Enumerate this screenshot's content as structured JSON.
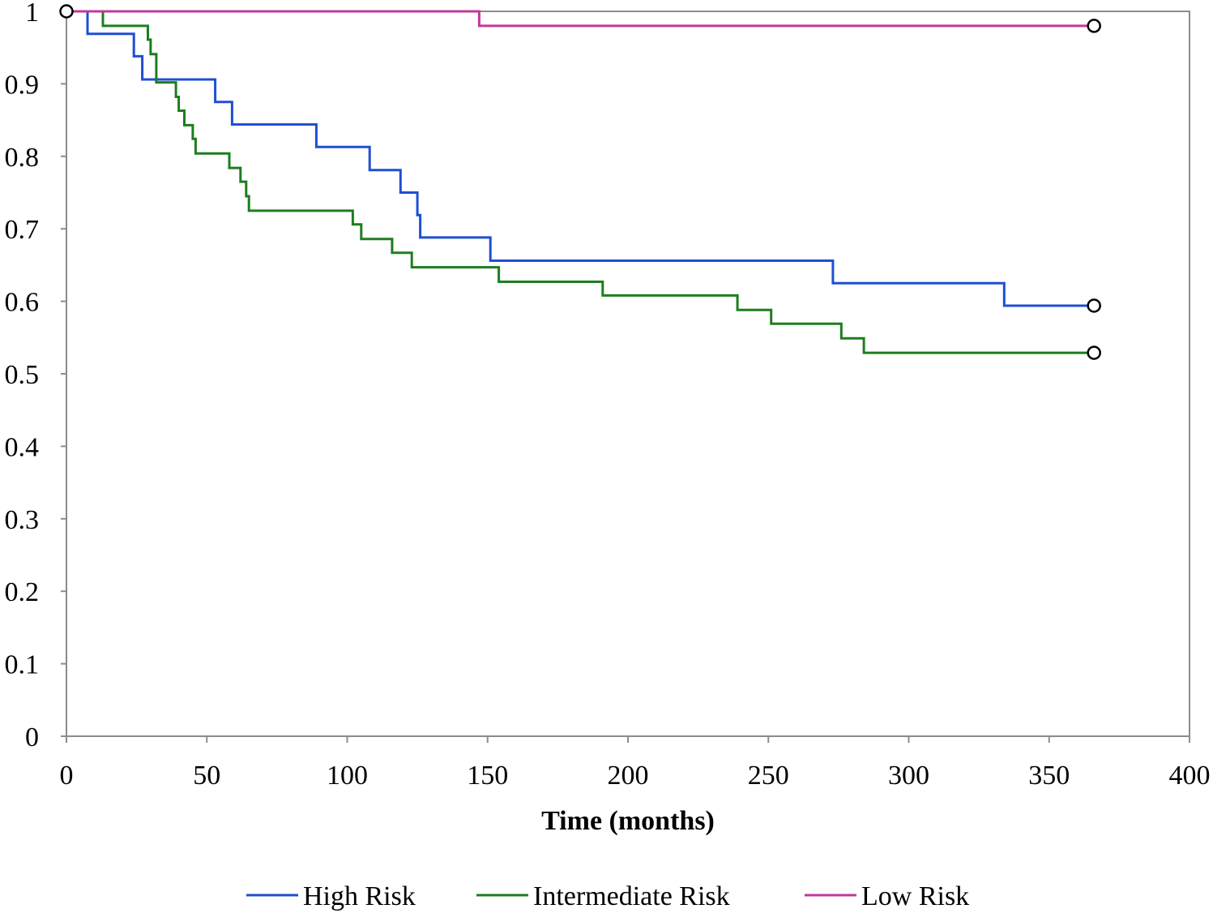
{
  "chart_data": {
    "type": "line",
    "step": true,
    "xlabel": "Time (months)",
    "ylabel": "",
    "xlim": [
      0,
      400
    ],
    "ylim": [
      0,
      1
    ],
    "xticks": [
      "0",
      "50",
      "100",
      "150",
      "200",
      "250",
      "300",
      "350",
      "400"
    ],
    "yticks": [
      "0",
      "0.1",
      "0.2",
      "0.3",
      "0.4",
      "0.5",
      "0.6",
      "0.7",
      "0.8",
      "0.9",
      "1"
    ],
    "grid": false,
    "legend_position": "bottom",
    "series": [
      {
        "name": "High Risk",
        "color": "#1f4fd1",
        "points": [
          [
            0,
            1
          ],
          [
            7.5,
            1
          ],
          [
            7.5,
            0.969
          ],
          [
            24,
            0.969
          ],
          [
            24,
            0.938
          ],
          [
            27,
            0.938
          ],
          [
            27,
            0.906
          ],
          [
            53,
            0.906
          ],
          [
            53,
            0.875
          ],
          [
            59,
            0.875
          ],
          [
            59,
            0.844
          ],
          [
            89,
            0.844
          ],
          [
            89,
            0.813
          ],
          [
            108,
            0.813
          ],
          [
            108,
            0.781
          ],
          [
            119,
            0.781
          ],
          [
            119,
            0.75
          ],
          [
            125,
            0.75
          ],
          [
            125,
            0.719
          ],
          [
            126,
            0.719
          ],
          [
            126,
            0.688
          ],
          [
            151,
            0.688
          ],
          [
            151,
            0.656
          ],
          [
            273,
            0.656
          ],
          [
            273,
            0.625
          ],
          [
            334,
            0.625
          ],
          [
            334,
            0.594
          ],
          [
            366,
            0.594
          ]
        ],
        "censored": [
          [
            366,
            0.594
          ]
        ]
      },
      {
        "name": "Intermediate Risk",
        "color": "#1e7d1e",
        "points": [
          [
            0,
            1
          ],
          [
            13,
            1
          ],
          [
            13,
            0.98
          ],
          [
            29,
            0.98
          ],
          [
            29,
            0.961
          ],
          [
            30,
            0.961
          ],
          [
            30,
            0.941
          ],
          [
            32,
            0.941
          ],
          [
            32,
            0.902
          ],
          [
            39,
            0.902
          ],
          [
            39,
            0.882
          ],
          [
            40,
            0.882
          ],
          [
            40,
            0.863
          ],
          [
            42,
            0.863
          ],
          [
            42,
            0.843
          ],
          [
            45,
            0.843
          ],
          [
            45,
            0.824
          ],
          [
            46,
            0.824
          ],
          [
            46,
            0.804
          ],
          [
            58,
            0.804
          ],
          [
            58,
            0.784
          ],
          [
            62,
            0.784
          ],
          [
            62,
            0.765
          ],
          [
            64,
            0.765
          ],
          [
            64,
            0.745
          ],
          [
            65,
            0.745
          ],
          [
            65,
            0.725
          ],
          [
            102,
            0.725
          ],
          [
            102,
            0.706
          ],
          [
            105,
            0.706
          ],
          [
            105,
            0.686
          ],
          [
            116,
            0.686
          ],
          [
            116,
            0.667
          ],
          [
            123,
            0.667
          ],
          [
            123,
            0.647
          ],
          [
            154,
            0.647
          ],
          [
            154,
            0.627
          ],
          [
            191,
            0.627
          ],
          [
            191,
            0.608
          ],
          [
            239,
            0.608
          ],
          [
            239,
            0.588
          ],
          [
            251,
            0.588
          ],
          [
            251,
            0.569
          ],
          [
            276,
            0.569
          ],
          [
            276,
            0.549
          ],
          [
            284,
            0.549
          ],
          [
            284,
            0.529
          ],
          [
            366,
            0.529
          ]
        ],
        "censored": [
          [
            366,
            0.529
          ]
        ]
      },
      {
        "name": "Low Risk",
        "color": "#c0399a",
        "points": [
          [
            0,
            1
          ],
          [
            147,
            1
          ],
          [
            147,
            0.98
          ],
          [
            366,
            0.98
          ]
        ],
        "censored": [
          [
            0,
            1
          ],
          [
            366,
            0.98
          ]
        ]
      }
    ]
  }
}
